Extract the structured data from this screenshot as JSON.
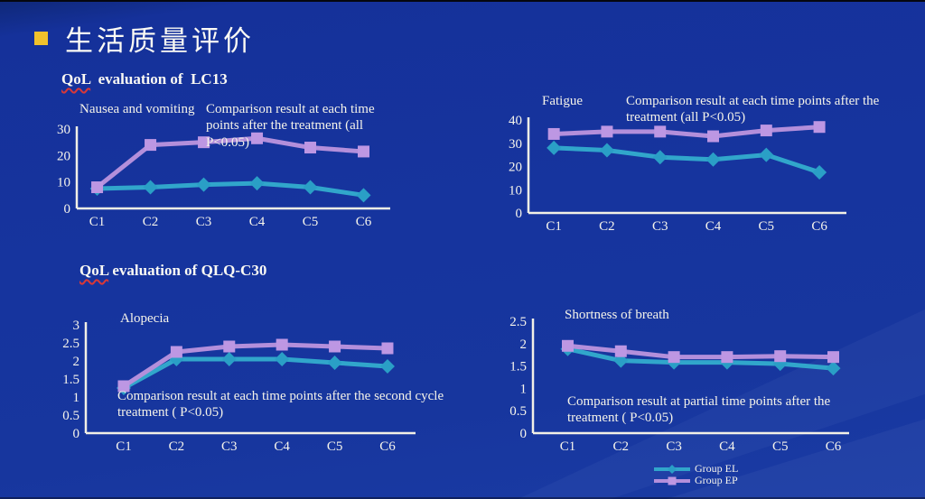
{
  "slide": {
    "title": "生活质量评价",
    "accent_color": "#f0c12c",
    "background_color": "#16349e",
    "text_color": "#f7f5ec"
  },
  "sections": {
    "lc13": {
      "highlight": "QoL",
      "rest": "  evaluation of  LC13"
    },
    "qlq": {
      "highlight": "QoL",
      "rest": " evaluation of QLQ-C30"
    }
  },
  "legend": {
    "position": "bottom-right",
    "items": [
      {
        "label": "Group EL",
        "line_color": "#31a6cb",
        "marker_color": "#2a9fc6",
        "marker": "diamond"
      },
      {
        "label": "Group EP",
        "line_color": "#b38fdb",
        "marker_color": "#bd97e3",
        "marker": "square"
      }
    ]
  },
  "chart_data": [
    {
      "type": "line",
      "title": "Nausea and vomiting",
      "annotation": "Comparison result at each time points after the treatment (all P<0.05)",
      "categories": [
        "C1",
        "C2",
        "C3",
        "C4",
        "C5",
        "C6"
      ],
      "xlabel": "",
      "ylabel": "",
      "ylim": [
        0,
        30
      ],
      "yticks": [
        0,
        10,
        20,
        30
      ],
      "grid": false,
      "series": [
        {
          "name": "Group EL",
          "marker": "diamond",
          "line_color": "#31a6cb",
          "marker_color": "#2a9fc6",
          "values": [
            7.5,
            8,
            9,
            9.5,
            8,
            5
          ]
        },
        {
          "name": "Group EP",
          "marker": "square",
          "line_color": "#b38fdb",
          "marker_color": "#bd97e3",
          "values": [
            8,
            24,
            25,
            26.5,
            23,
            21.5
          ]
        }
      ]
    },
    {
      "type": "line",
      "title": "Fatigue",
      "annotation": "Comparison result at each time points after the treatment (all P<0.05)",
      "categories": [
        "C1",
        "C2",
        "C3",
        "C4",
        "C5",
        "C6"
      ],
      "xlabel": "",
      "ylabel": "",
      "ylim": [
        0,
        40
      ],
      "yticks": [
        0,
        10,
        20,
        30,
        40
      ],
      "grid": false,
      "series": [
        {
          "name": "Group EL",
          "marker": "diamond",
          "line_color": "#31a6cb",
          "marker_color": "#2a9fc6",
          "values": [
            28,
            27,
            24,
            23,
            25,
            17.5
          ]
        },
        {
          "name": "Group EP",
          "marker": "square",
          "line_color": "#b38fdb",
          "marker_color": "#bd97e3",
          "values": [
            34,
            35,
            35,
            33,
            35.5,
            37
          ]
        }
      ]
    },
    {
      "type": "line",
      "title": "Alopecia",
      "annotation": "Comparison result at each time points after the second cycle treatment ( P<0.05)",
      "categories": [
        "C1",
        "C2",
        "C3",
        "C4",
        "C5",
        "C6"
      ],
      "xlabel": "",
      "ylabel": "",
      "ylim": [
        0,
        3
      ],
      "yticks": [
        0,
        0.5,
        1,
        1.5,
        2,
        2.5,
        3
      ],
      "grid": false,
      "series": [
        {
          "name": "Group EL",
          "marker": "diamond",
          "line_color": "#31a6cb",
          "marker_color": "#2a9fc6",
          "values": [
            1.25,
            2.05,
            2.05,
            2.05,
            1.95,
            1.85
          ]
        },
        {
          "name": "Group EP",
          "marker": "square",
          "line_color": "#b38fdb",
          "marker_color": "#bd97e3",
          "values": [
            1.3,
            2.25,
            2.4,
            2.45,
            2.4,
            2.35
          ]
        }
      ]
    },
    {
      "type": "line",
      "title": "Shortness of breath",
      "annotation": "Comparison result at partial time points after the treatment ( P<0.05)",
      "categories": [
        "C1",
        "C2",
        "C3",
        "C4",
        "C5",
        "C6"
      ],
      "xlabel": "",
      "ylabel": "",
      "ylim": [
        0,
        2.5
      ],
      "yticks": [
        0,
        0.5,
        1,
        1.5,
        2,
        2.5
      ],
      "grid": false,
      "series": [
        {
          "name": "Group EL",
          "marker": "diamond",
          "line_color": "#31a6cb",
          "marker_color": "#2a9fc6",
          "values": [
            1.88,
            1.62,
            1.58,
            1.58,
            1.55,
            1.45
          ]
        },
        {
          "name": "Group EP",
          "marker": "square",
          "line_color": "#b38fdb",
          "marker_color": "#bd97e3",
          "values": [
            1.95,
            1.83,
            1.7,
            1.7,
            1.72,
            1.7
          ]
        }
      ]
    }
  ]
}
